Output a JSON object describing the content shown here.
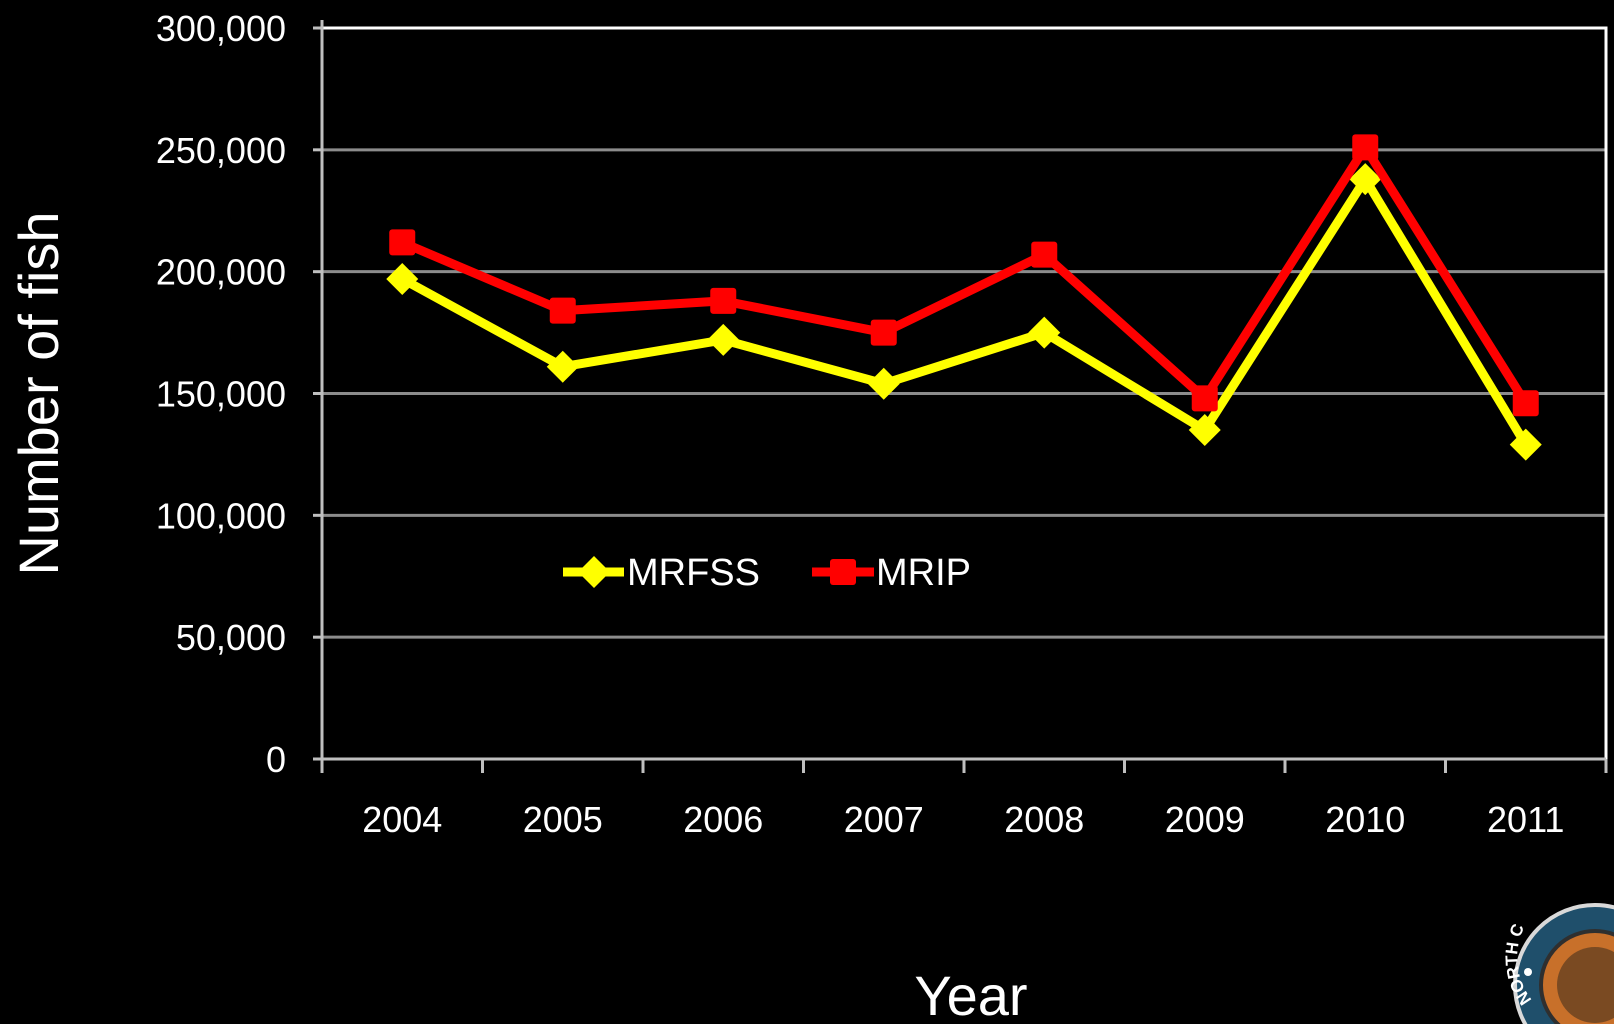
{
  "chart_data": {
    "type": "line",
    "title": "",
    "xlabel": "Year",
    "ylabel": "Number of fish",
    "categories": [
      "2004",
      "2005",
      "2006",
      "2007",
      "2008",
      "2009",
      "2010",
      "2011"
    ],
    "ylim": [
      0,
      300000
    ],
    "yticks": [
      0,
      50000,
      100000,
      150000,
      200000,
      250000,
      300000
    ],
    "ytick_labels": [
      "0",
      "50,000",
      "100,000",
      "150,000",
      "200,000",
      "250,000",
      "300,000"
    ],
    "grid": true,
    "legend": "center-left",
    "series": [
      {
        "name": "MRFSS",
        "color": "#ffff00",
        "marker": "diamond",
        "values": [
          197000,
          161000,
          172000,
          154000,
          175000,
          135000,
          238000,
          129000
        ]
      },
      {
        "name": "MRIP",
        "color": "#ff0000",
        "marker": "square",
        "values": [
          212000,
          184000,
          188000,
          175000,
          207000,
          148000,
          251000,
          146000
        ]
      }
    ]
  },
  "colors": {
    "background": "#000000",
    "gridline": "#8c8c8c",
    "axis": "#bfbfbf",
    "text": "#ffffff",
    "plot_border": "#ffffff"
  },
  "logo": {
    "icon": "state-seal-logo",
    "text": "NORTH C"
  }
}
